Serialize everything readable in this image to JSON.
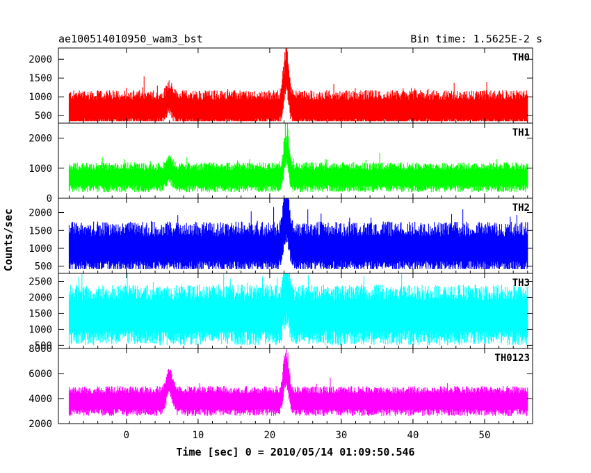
{
  "header": {
    "title": "ae100514010950_wam3_bst",
    "bin_time": "Bin time: 1.5625E-2 s"
  },
  "chart_data": [
    {
      "type": "line",
      "name": "TH0",
      "label": "TH0",
      "color": "#ff0000",
      "ylim": [
        300,
        2300
      ],
      "yticks": [
        500,
        1000,
        1500,
        2000
      ],
      "baseline": 700,
      "spread": 480,
      "lower_spread": 500,
      "floor": 350,
      "spike_peak": 2250,
      "spike_time": 22.3,
      "spike_width": 0.5,
      "extra_bumps": [
        {
          "t": 6.0,
          "amp": 300,
          "w": 0.6
        }
      ]
    },
    {
      "type": "line",
      "name": "TH1",
      "label": "TH1",
      "color": "#00ff00",
      "ylim": [
        0,
        2500
      ],
      "yticks": [
        0,
        1000,
        2000
      ],
      "baseline": 720,
      "spread": 480,
      "lower_spread": 520,
      "floor": 80,
      "spike_peak": 2350,
      "spike_time": 22.3,
      "spike_width": 0.45,
      "extra_bumps": [
        {
          "t": 6.0,
          "amp": 250,
          "w": 0.6
        }
      ]
    },
    {
      "type": "line",
      "name": "TH2",
      "label": "TH2",
      "color": "#0000ff",
      "ylim": [
        300,
        2400
      ],
      "yticks": [
        500,
        1000,
        1500,
        2000
      ],
      "baseline": 1000,
      "spread": 750,
      "lower_spread": 650,
      "floor": 420,
      "spike_peak": 2350,
      "spike_time": 22.3,
      "spike_width": 0.6,
      "extra_bumps": []
    },
    {
      "type": "line",
      "name": "TH3",
      "label": "TH3",
      "color": "#00ffff",
      "ylim": [
        400,
        2750
      ],
      "yticks": [
        500,
        1000,
        1500,
        2000,
        2500
      ],
      "baseline": 1500,
      "spread": 900,
      "lower_spread": 1000,
      "floor": 480,
      "spike_peak": 2650,
      "spike_time": 22.3,
      "spike_width": 0.5,
      "extra_bumps": []
    },
    {
      "type": "line",
      "name": "TH0123",
      "label": "TH0123",
      "color": "#ff00ff",
      "ylim": [
        2000,
        8000
      ],
      "yticks": [
        2000,
        4000,
        6000,
        8000
      ],
      "baseline": 3900,
      "spread": 1100,
      "lower_spread": 1300,
      "floor": 2400,
      "spike_peak": 8000,
      "spike_time": 22.3,
      "spike_width": 0.5,
      "extra_bumps": [
        {
          "t": 6.0,
          "amp": 1500,
          "w": 0.6
        }
      ]
    }
  ],
  "x_axis": {
    "xlim": [
      -9.5,
      56.7
    ],
    "data_range": [
      -8.0,
      56.0
    ],
    "ticks": [
      0,
      10,
      20,
      30,
      40,
      50
    ],
    "minor_step": 2,
    "label": "Time [sec] 0 = 2010/05/14 01:09:50.546"
  },
  "y_axis": {
    "label": "Counts/sec"
  }
}
